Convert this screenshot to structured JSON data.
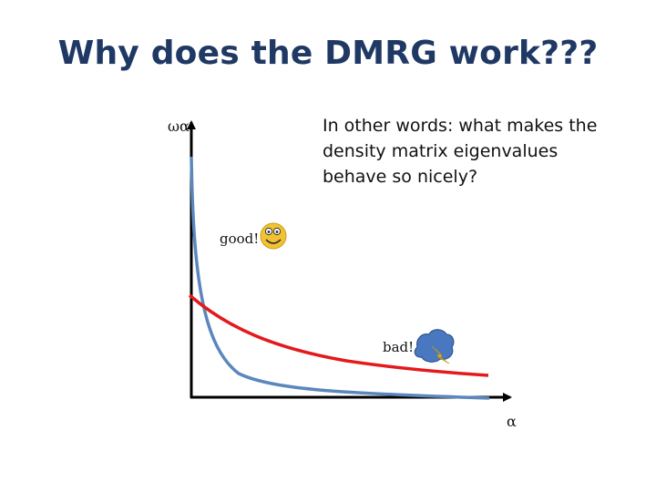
{
  "slide": {
    "title": "Why does the DMRG work???",
    "note_lines": [
      "In other words: what makes the",
      "density matrix eigenvalues",
      "behave so nicely?"
    ]
  },
  "diagram": {
    "y_axis_label": "ωα",
    "x_axis_label": "α",
    "curves": [
      {
        "label": "good!",
        "color": "#5b87bd",
        "icon": "smiley-face-icon"
      },
      {
        "label": "bad!",
        "color": "#e3191c",
        "icon": "storm-cloud-lightning-icon"
      }
    ],
    "colors": {
      "axis": "#000000",
      "smiley_fill": "#f2c230",
      "cloud_fill": "#4a78c0",
      "bolt_fill": "#f2c230"
    }
  }
}
